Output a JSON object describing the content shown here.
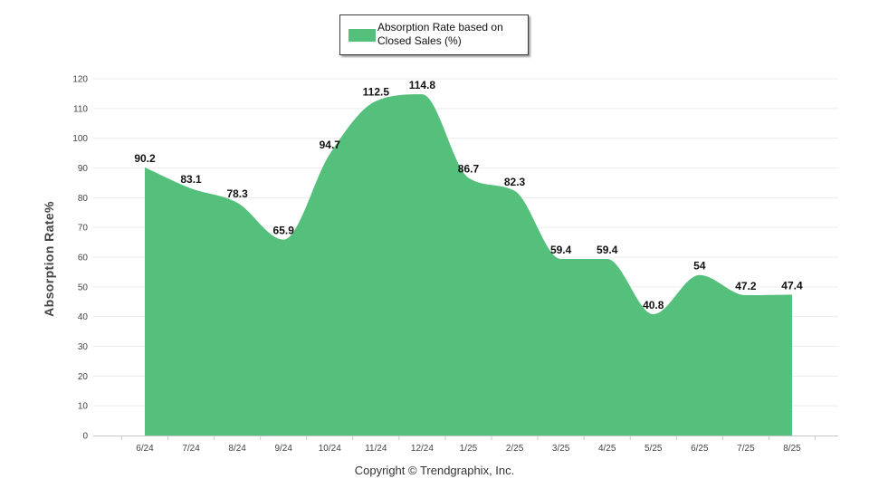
{
  "chart_data": {
    "type": "area",
    "categories": [
      "6/24",
      "7/24",
      "8/24",
      "9/24",
      "10/24",
      "11/24",
      "12/24",
      "1/25",
      "2/25",
      "3/25",
      "4/25",
      "5/25",
      "6/25",
      "7/25",
      "8/25"
    ],
    "series": [
      {
        "name": "Absorption Rate based on Closed Sales (%)",
        "values": [
          90.2,
          83.1,
          78.3,
          65.9,
          94.7,
          112.5,
          114.8,
          86.7,
          82.3,
          59.4,
          59.4,
          40.8,
          54,
          47.2,
          47.4
        ],
        "color": "#54c07c"
      }
    ],
    "data_labels": [
      "90.2",
      "83.1",
      "78.3",
      "65.9",
      "94.7",
      "112.5",
      "114.8",
      "86.7",
      "82.3",
      "59.4",
      "59.4",
      "40.8",
      "54",
      "47.2",
      "47.4"
    ],
    "y_ticks": [
      0,
      10,
      20,
      30,
      40,
      50,
      60,
      70,
      80,
      90,
      100,
      110,
      120
    ],
    "ylim": [
      0,
      120
    ],
    "xlabel": "",
    "ylabel": "Absorption Rate%",
    "legend_position": "top-center",
    "grid": true
  },
  "legend": {
    "label": "Absorption Rate based on Closed Sales (%)"
  },
  "footer": {
    "copyright": "Copyright © Trendgraphix, Inc."
  }
}
